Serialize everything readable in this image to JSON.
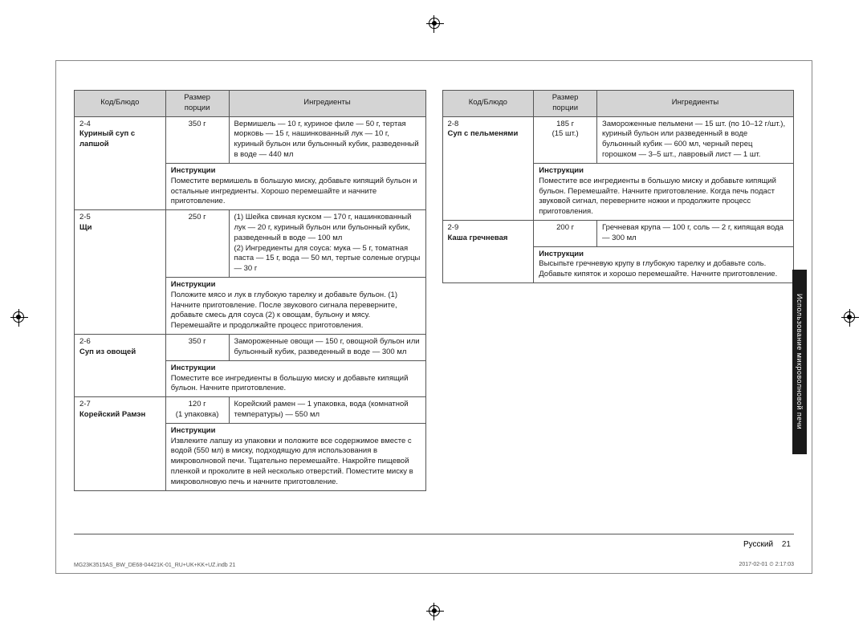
{
  "headers": {
    "code": "Код/Блюдо",
    "size": "Размер порции",
    "ing": "Ингредиенты"
  },
  "sideTab": "Использование микроволновой печи",
  "footer": {
    "lang": "Русский",
    "page": "21"
  },
  "imprint": {
    "left": "MG23K3515AS_BW_DE68-04421K-01_RU+UK+KK+UZ.indb   21",
    "right": "2017-02-01   ⏲ 2:17:03"
  },
  "left": [
    {
      "code": "2-4",
      "dish": "Куриный суп с лапшой",
      "size": "350 г",
      "ing": "Вермишель — 10 г, куриное филе — 50 г, тертая морковь — 15 г, нашинкованный лук — 10 г, куриный бульон или бульонный кубик, разведенный в воде — 440 мл",
      "instrLabel": "Инструкции",
      "instr": "Поместите вермишель в большую миску, добавьте кипящий бульон и остальные ингредиенты. Хорошо перемешайте и начните приготовление."
    },
    {
      "code": "2-5",
      "dish": "Щи",
      "size": "250 г",
      "ing": "(1) Шейка свиная куском — 170 г, нашинкованный лук — 20 г, куриный бульон или бульонный кубик, разведенный в воде — 100 мл\n(2) Ингредиенты для соуса: мука — 5 г, томатная паста — 15 г, вода — 50 мл, тертые соленые огурцы — 30 г",
      "instrLabel": "Инструкции",
      "instr": "Положите мясо и лук в глубокую тарелку и добавьте бульон. (1) Начните приготовление. После звукового сигнала переверните, добавьте смесь для соуса (2) к овощам, бульону и мясу. Перемешайте и продолжайте процесс приготовления."
    },
    {
      "code": "2-6",
      "dish": "Суп из овощей",
      "size": "350 г",
      "ing": "Замороженные овощи — 150 г, овощной бульон или бульонный кубик, разведенный в воде — 300 мл",
      "instrLabel": "Инструкции",
      "instr": "Поместите все ингредиенты в большую миску и добавьте кипящий бульон. Начните приготовление."
    },
    {
      "code": "2-7",
      "dish": "Корейский Рамэн",
      "size": "120 г",
      "sizeNote": "(1 упаковка)",
      "ing": "Корейский рамен — 1 упаковка, вода (комнатной температуры) — 550 мл",
      "instrLabel": "Инструкции",
      "instr": "Извлеките лапшу из упаковки и положите все содержимое вместе с водой (550 мл) в миску, подходящую для использования в микроволновой печи. Тщательно перемешайте. Накройте пищевой пленкой и проколите в ней несколько отверстий. Поместите миску в микроволновую печь и начните приготовление."
    }
  ],
  "right": [
    {
      "code": "2-8",
      "dish": "Суп с пельменями",
      "size": "185 г",
      "sizeNote": "(15 шт.)",
      "ing": "Замороженные пельмени — 15 шт. (по 10–12 г/шт.), куриный бульон или разведенный в воде бульонный кубик — 600 мл, черный перец горошком — 3–5 шт., лавровый лист — 1 шт.",
      "instrLabel": "Инструкции",
      "instr": "Поместите все ингредиенты в большую миску и добавьте кипящий бульон. Перемешайте. Начните приготовление. Когда печь подаст звуковой сигнал, переверните ножки и продолжите процесс приготовления."
    },
    {
      "code": "2-9",
      "dish": "Каша гречневая",
      "size": "200 г",
      "ing": "Гречневая крупа — 100 г, соль — 2 г, кипящая вода — 300 мл",
      "instrLabel": "Инструкции",
      "instr": "Высыпьте гречневую крупу в глубокую тарелку и добавьте соль. Добавьте кипяток и хорошо перемешайте. Начните приготовление."
    }
  ]
}
